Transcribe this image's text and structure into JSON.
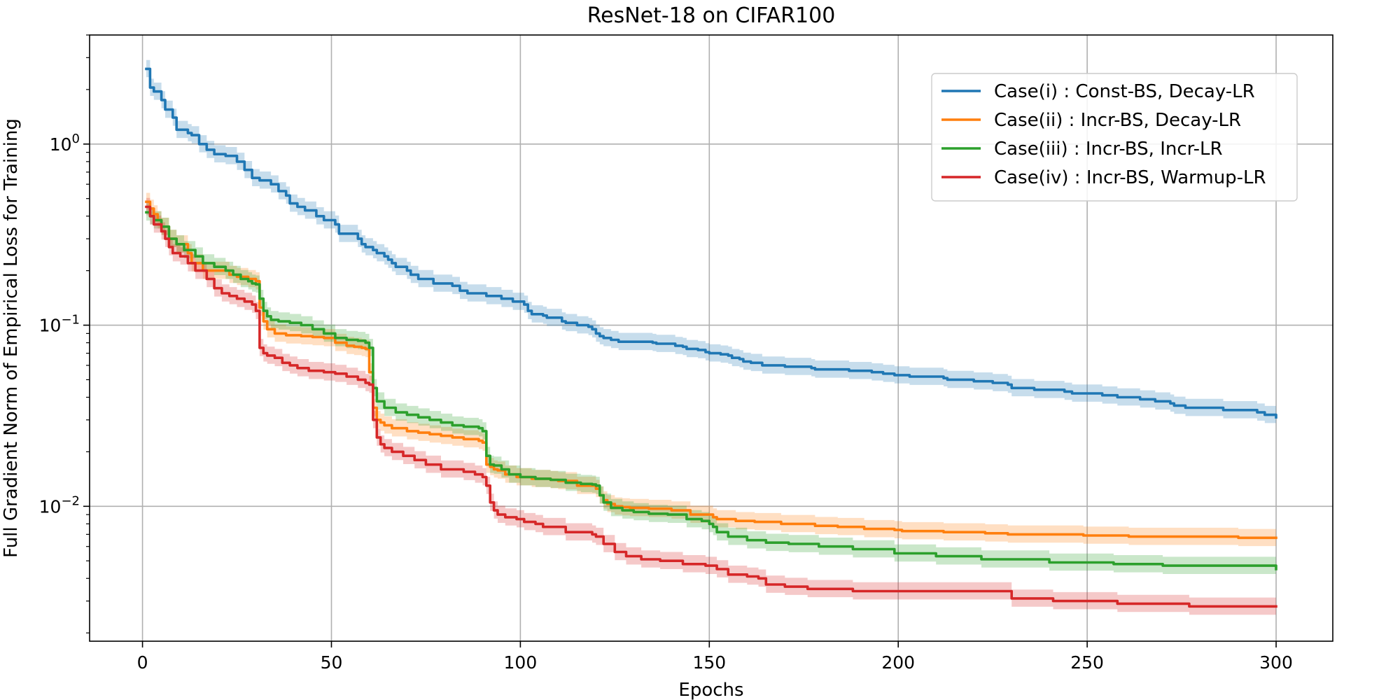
{
  "chart_data": {
    "type": "line",
    "title": "ResNet-18 on CIFAR100",
    "xlabel": "Epochs",
    "ylabel": "Full Gradient Norm of Empirical Loss for Training",
    "yscale": "log",
    "xlim": [
      -14,
      315
    ],
    "ylim": [
      0.0018,
      4.0
    ],
    "xticks": [
      0,
      50,
      100,
      150,
      200,
      250,
      300
    ],
    "xtick_labels": [
      "0",
      "50",
      "100",
      "150",
      "200",
      "250",
      "300"
    ],
    "yticks": [
      0.01,
      0.1,
      1
    ],
    "ytick_labels": [
      {
        "base": "10",
        "exp": "−2"
      },
      {
        "base": "10",
        "exp": "−1"
      },
      {
        "base": "10",
        "exp": "0"
      }
    ],
    "grid": true,
    "legend_position": "top-right",
    "series": [
      {
        "name": "Case(i) : Const-BS, Decay-LR",
        "color": "#1f77b4",
        "x": [
          1,
          2,
          3,
          5,
          6,
          8,
          9,
          12,
          13,
          15,
          17,
          19,
          22,
          25,
          27,
          29,
          31,
          34,
          36,
          38,
          39,
          41,
          43,
          46,
          48,
          49,
          51,
          52,
          55,
          57,
          58,
          59,
          61,
          62,
          64,
          65,
          66,
          67,
          70,
          71,
          73,
          77,
          79,
          82,
          84,
          86,
          89,
          91,
          95,
          96,
          98,
          99,
          101,
          102,
          103,
          106,
          107,
          111,
          112,
          115,
          118,
          119,
          120,
          121,
          122,
          124,
          126,
          128,
          135,
          136,
          141,
          143,
          144,
          147,
          149,
          150,
          153,
          155,
          156,
          158,
          159,
          161,
          164,
          165,
          170,
          172,
          173,
          177,
          178,
          184,
          187,
          192,
          193,
          195,
          196,
          199,
          203,
          209,
          212,
          213,
          219,
          220,
          222,
          225,
          229,
          230,
          234,
          236,
          240,
          244,
          246,
          250,
          253,
          254,
          258,
          263,
          264,
          266,
          268,
          271,
          272,
          273,
          275,
          276,
          278,
          279,
          281,
          283,
          286,
          292,
          295,
          297,
          300
        ],
        "y": [
          2.6,
          2.05,
          1.95,
          1.75,
          1.55,
          1.4,
          1.2,
          1.15,
          1.12,
          1.0,
          0.93,
          0.88,
          0.86,
          0.8,
          0.72,
          0.65,
          0.63,
          0.6,
          0.55,
          0.52,
          0.47,
          0.45,
          0.43,
          0.4,
          0.38,
          0.38,
          0.36,
          0.32,
          0.32,
          0.3,
          0.28,
          0.27,
          0.26,
          0.25,
          0.24,
          0.23,
          0.22,
          0.21,
          0.2,
          0.19,
          0.18,
          0.17,
          0.17,
          0.165,
          0.155,
          0.15,
          0.15,
          0.145,
          0.14,
          0.14,
          0.135,
          0.135,
          0.13,
          0.12,
          0.115,
          0.113,
          0.11,
          0.105,
          0.103,
          0.1,
          0.098,
          0.095,
          0.09,
          0.087,
          0.085,
          0.083,
          0.081,
          0.081,
          0.08,
          0.079,
          0.077,
          0.076,
          0.074,
          0.073,
          0.071,
          0.07,
          0.069,
          0.068,
          0.066,
          0.065,
          0.063,
          0.062,
          0.06,
          0.06,
          0.059,
          0.059,
          0.059,
          0.058,
          0.057,
          0.057,
          0.056,
          0.056,
          0.055,
          0.055,
          0.054,
          0.053,
          0.052,
          0.052,
          0.051,
          0.05,
          0.05,
          0.049,
          0.049,
          0.048,
          0.047,
          0.045,
          0.045,
          0.044,
          0.044,
          0.043,
          0.042,
          0.042,
          0.042,
          0.041,
          0.04,
          0.04,
          0.039,
          0.039,
          0.038,
          0.038,
          0.037,
          0.036,
          0.036,
          0.035,
          0.035,
          0.035,
          0.035,
          0.035,
          0.034,
          0.034,
          0.033,
          0.032,
          0.031
        ]
      },
      {
        "name": "Case(ii) : Incr-BS, Decay-LR",
        "color": "#ff7f0e",
        "x": [
          1,
          2,
          3,
          4,
          5,
          7,
          9,
          12,
          13,
          16,
          19,
          21,
          23,
          25,
          26,
          28,
          30,
          31,
          32,
          33,
          35,
          38,
          42,
          45,
          48,
          51,
          53,
          54,
          56,
          58,
          59,
          60,
          61,
          62,
          63,
          64,
          66,
          68,
          70,
          73,
          76,
          79,
          82,
          85,
          89,
          90,
          91,
          92,
          93,
          94,
          96,
          99,
          100,
          103,
          108,
          110,
          115,
          120,
          121,
          122,
          123,
          125,
          127,
          129,
          134,
          140,
          145,
          150,
          151,
          152,
          157,
          162,
          169,
          178,
          184,
          191,
          199,
          201,
          212,
          223,
          229,
          237,
          249,
          261,
          278,
          290,
          300
        ],
        "y": [
          0.48,
          0.44,
          0.41,
          0.38,
          0.35,
          0.3,
          0.28,
          0.25,
          0.22,
          0.2,
          0.2,
          0.2,
          0.19,
          0.185,
          0.185,
          0.18,
          0.175,
          0.125,
          0.105,
          0.095,
          0.09,
          0.088,
          0.087,
          0.086,
          0.085,
          0.08,
          0.08,
          0.077,
          0.076,
          0.075,
          0.074,
          0.055,
          0.035,
          0.03,
          0.029,
          0.028,
          0.027,
          0.027,
          0.026,
          0.0255,
          0.025,
          0.0245,
          0.024,
          0.0235,
          0.023,
          0.0225,
          0.017,
          0.0165,
          0.016,
          0.0158,
          0.015,
          0.0145,
          0.0145,
          0.0142,
          0.014,
          0.0138,
          0.013,
          0.0125,
          0.0115,
          0.0108,
          0.0103,
          0.01,
          0.0099,
          0.0098,
          0.0097,
          0.0095,
          0.009,
          0.009,
          0.0087,
          0.0085,
          0.0083,
          0.0082,
          0.008,
          0.0078,
          0.0077,
          0.0075,
          0.0074,
          0.0073,
          0.0072,
          0.0071,
          0.007,
          0.007,
          0.0069,
          0.0068,
          0.0068,
          0.0067,
          0.0067
        ]
      },
      {
        "name": "Case(iii) : Incr-BS, Incr-LR",
        "color": "#2ca02c",
        "x": [
          1,
          2,
          3,
          5,
          7,
          9,
          11,
          14,
          16,
          19,
          22,
          24,
          26,
          28,
          29,
          30,
          31,
          32,
          33,
          34,
          36,
          39,
          42,
          45,
          48,
          51,
          54,
          57,
          59,
          60,
          61,
          62,
          64,
          67,
          70,
          73,
          76,
          79,
          82,
          85,
          89,
          90,
          91,
          92,
          93,
          95,
          97,
          100,
          104,
          108,
          112,
          116,
          119,
          120,
          121,
          122,
          124,
          127,
          130,
          134,
          139,
          144,
          148,
          150,
          151,
          152,
          155,
          160,
          165,
          171,
          179,
          188,
          199,
          210,
          222,
          240,
          257,
          270,
          299,
          300
        ],
        "y": [
          0.42,
          0.4,
          0.38,
          0.35,
          0.3,
          0.28,
          0.26,
          0.24,
          0.22,
          0.21,
          0.2,
          0.19,
          0.18,
          0.175,
          0.17,
          0.168,
          0.14,
          0.12,
          0.112,
          0.107,
          0.105,
          0.103,
          0.1,
          0.095,
          0.09,
          0.085,
          0.083,
          0.082,
          0.08,
          0.075,
          0.045,
          0.038,
          0.035,
          0.033,
          0.032,
          0.031,
          0.03,
          0.029,
          0.028,
          0.0275,
          0.027,
          0.026,
          0.019,
          0.017,
          0.0168,
          0.016,
          0.015,
          0.0145,
          0.0142,
          0.014,
          0.0135,
          0.0133,
          0.0132,
          0.013,
          0.0115,
          0.0105,
          0.0098,
          0.0095,
          0.0093,
          0.0091,
          0.009,
          0.0085,
          0.0083,
          0.008,
          0.0077,
          0.0072,
          0.0068,
          0.0065,
          0.0063,
          0.0062,
          0.006,
          0.0058,
          0.0055,
          0.0053,
          0.0051,
          0.0049,
          0.0048,
          0.0047,
          0.0047,
          0.0045
        ]
      },
      {
        "name": "Case(iv) : Incr-BS, Warmup-LR",
        "color": "#d62728",
        "x": [
          1,
          2,
          3,
          5,
          6,
          7,
          8,
          10,
          12,
          14,
          17,
          19,
          21,
          23,
          25,
          27,
          29,
          30,
          31,
          32,
          33,
          35,
          37,
          39,
          41,
          44,
          48,
          51,
          54,
          57,
          59,
          60,
          61,
          62,
          63,
          64,
          66,
          69,
          72,
          75,
          79,
          82,
          85,
          88,
          90,
          91,
          92,
          93,
          94,
          96,
          99,
          101,
          104,
          106,
          112,
          119,
          120,
          122,
          125,
          128,
          132,
          137,
          143,
          149,
          150,
          152,
          155,
          160,
          163,
          165,
          170,
          176,
          188,
          197,
          208,
          218,
          224,
          229,
          230,
          235,
          241,
          248,
          258,
          268,
          276,
          277,
          300
        ],
        "y": [
          0.45,
          0.4,
          0.36,
          0.33,
          0.3,
          0.27,
          0.25,
          0.24,
          0.22,
          0.2,
          0.18,
          0.16,
          0.15,
          0.145,
          0.14,
          0.135,
          0.13,
          0.12,
          0.075,
          0.07,
          0.068,
          0.066,
          0.062,
          0.06,
          0.058,
          0.056,
          0.055,
          0.054,
          0.052,
          0.05,
          0.048,
          0.047,
          0.03,
          0.024,
          0.022,
          0.021,
          0.02,
          0.019,
          0.018,
          0.017,
          0.016,
          0.016,
          0.0155,
          0.015,
          0.0145,
          0.013,
          0.0105,
          0.0095,
          0.009,
          0.0087,
          0.0085,
          0.0082,
          0.008,
          0.0077,
          0.0072,
          0.007,
          0.0068,
          0.0062,
          0.0056,
          0.0053,
          0.0051,
          0.005,
          0.0048,
          0.0047,
          0.0047,
          0.0045,
          0.0042,
          0.0041,
          0.004,
          0.0037,
          0.0036,
          0.0035,
          0.0034,
          0.0034,
          0.0034,
          0.0034,
          0.0034,
          0.0034,
          0.0031,
          0.0031,
          0.003,
          0.003,
          0.0029,
          0.0029,
          0.0029,
          0.0028,
          0.0028
        ]
      }
    ]
  }
}
